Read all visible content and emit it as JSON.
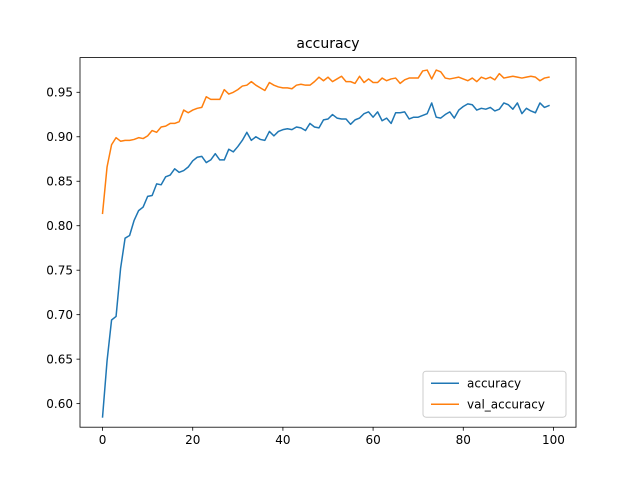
{
  "chart_data": {
    "type": "line",
    "title": "accuracy",
    "xlabel": "",
    "ylabel": "",
    "xlim": [
      -5,
      105
    ],
    "ylim": [
      0.5735,
      0.989
    ],
    "xticks": [
      0,
      20,
      40,
      60,
      80,
      100
    ],
    "yticks": [
      0.6,
      0.65,
      0.7,
      0.75,
      0.8,
      0.85,
      0.9,
      0.95
    ],
    "ytick_labels": [
      "0.60",
      "0.65",
      "0.70",
      "0.75",
      "0.80",
      "0.85",
      "0.90",
      "0.95"
    ],
    "xtick_labels": [
      "0",
      "20",
      "40",
      "60",
      "80",
      "100"
    ],
    "grid": false,
    "legend_position": "lower-right",
    "series": [
      {
        "name": "accuracy",
        "color": "#1f77b4",
        "values": [
          0.585,
          0.648,
          0.694,
          0.698,
          0.752,
          0.786,
          0.789,
          0.806,
          0.817,
          0.821,
          0.833,
          0.834,
          0.847,
          0.846,
          0.855,
          0.857,
          0.864,
          0.86,
          0.862,
          0.866,
          0.873,
          0.877,
          0.878,
          0.871,
          0.874,
          0.881,
          0.874,
          0.874,
          0.886,
          0.883,
          0.889,
          0.896,
          0.905,
          0.896,
          0.9,
          0.897,
          0.896,
          0.906,
          0.901,
          0.906,
          0.908,
          0.909,
          0.908,
          0.911,
          0.91,
          0.907,
          0.915,
          0.911,
          0.91,
          0.919,
          0.92,
          0.925,
          0.921,
          0.92,
          0.92,
          0.914,
          0.919,
          0.921,
          0.926,
          0.928,
          0.922,
          0.928,
          0.918,
          0.921,
          0.915,
          0.927,
          0.927,
          0.928,
          0.92,
          0.922,
          0.922,
          0.924,
          0.926,
          0.938,
          0.922,
          0.921,
          0.925,
          0.928,
          0.921,
          0.93,
          0.934,
          0.937,
          0.936,
          0.93,
          0.932,
          0.931,
          0.933,
          0.929,
          0.931,
          0.938,
          0.936,
          0.931,
          0.938,
          0.926,
          0.932,
          0.929,
          0.927,
          0.938,
          0.933,
          0.935
        ]
      },
      {
        "name": "val_accuracy",
        "color": "#ff7f0e",
        "values": [
          0.814,
          0.866,
          0.891,
          0.899,
          0.895,
          0.896,
          0.896,
          0.897,
          0.899,
          0.898,
          0.901,
          0.907,
          0.905,
          0.911,
          0.912,
          0.915,
          0.915,
          0.917,
          0.93,
          0.927,
          0.93,
          0.932,
          0.933,
          0.945,
          0.942,
          0.942,
          0.942,
          0.953,
          0.948,
          0.95,
          0.953,
          0.957,
          0.958,
          0.962,
          0.958,
          0.955,
          0.952,
          0.961,
          0.958,
          0.956,
          0.955,
          0.955,
          0.954,
          0.958,
          0.959,
          0.958,
          0.958,
          0.962,
          0.967,
          0.963,
          0.967,
          0.962,
          0.965,
          0.968,
          0.962,
          0.962,
          0.96,
          0.968,
          0.961,
          0.965,
          0.961,
          0.961,
          0.966,
          0.963,
          0.965,
          0.966,
          0.96,
          0.964,
          0.966,
          0.966,
          0.966,
          0.974,
          0.975,
          0.965,
          0.975,
          0.973,
          0.966,
          0.965,
          0.966,
          0.967,
          0.965,
          0.963,
          0.966,
          0.962,
          0.967,
          0.965,
          0.967,
          0.964,
          0.971,
          0.966,
          0.967,
          0.968,
          0.967,
          0.966,
          0.967,
          0.968,
          0.967,
          0.963,
          0.966,
          0.967
        ]
      }
    ]
  }
}
